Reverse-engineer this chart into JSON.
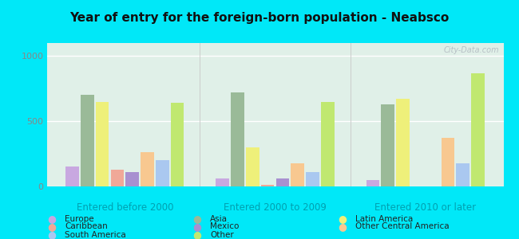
{
  "title": "Year of entry for the foreign-born population - Neabsco",
  "groups": [
    "Entered before 2000",
    "Entered 2000 to 2009",
    "Entered 2010 or later"
  ],
  "categories": [
    "Europe",
    "Asia",
    "Latin America",
    "Caribbean",
    "Mexico",
    "Other Central America",
    "South America",
    "Other"
  ],
  "colors": [
    "#c8a8e0",
    "#9aba98",
    "#eef07a",
    "#f0a898",
    "#a890d0",
    "#f8c890",
    "#aac8f0",
    "#c0e870"
  ],
  "values": [
    [
      150,
      700,
      650,
      130,
      110,
      260,
      200,
      640
    ],
    [
      60,
      720,
      300,
      10,
      60,
      175,
      110,
      650
    ],
    [
      50,
      630,
      670,
      0,
      0,
      370,
      175,
      870
    ]
  ],
  "ylim": [
    0,
    1100
  ],
  "yticks": [
    0,
    500,
    1000
  ],
  "outer_bg": "#00e8f8",
  "plot_bg": "#e0f0e8",
  "watermark": "City-Data.com",
  "legend_order": [
    "Europe",
    "Asia",
    "Latin America",
    "Caribbean",
    "Mexico",
    "Other Central America",
    "South America",
    "Other"
  ],
  "legend_colors": [
    "#c8a8e0",
    "#9aba98",
    "#eef07a",
    "#f0a898",
    "#a890d0",
    "#f8c890",
    "#aac8f0",
    "#c0e870"
  ]
}
